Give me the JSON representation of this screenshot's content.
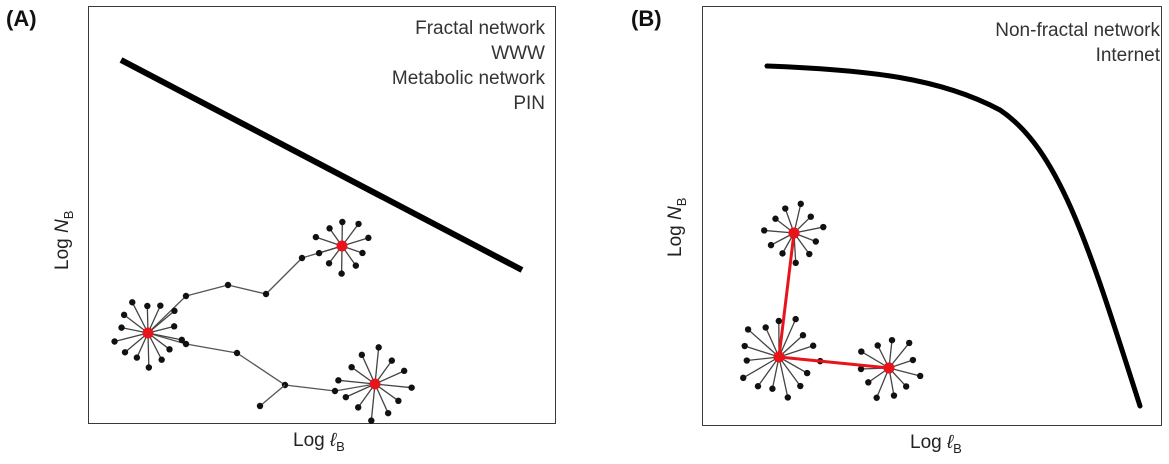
{
  "panel_a": {
    "tag": "(A)",
    "legend": [
      "Fractal network",
      "WWW",
      "Metabolic network",
      "PIN"
    ],
    "xlabel": {
      "prefix": "Log ",
      "symbol": "ℓ",
      "sub": "B"
    },
    "ylabel": {
      "prefix": "Log ",
      "symbol": "N",
      "sub": "B"
    }
  },
  "panel_b": {
    "tag": "(B)",
    "legend": [
      "Non-fractal network",
      "Internet"
    ],
    "xlabel": {
      "prefix": "Log ",
      "symbol": "ℓ",
      "sub": "B"
    },
    "ylabel": {
      "prefix": "Log ",
      "symbol": "N",
      "sub": "B"
    }
  },
  "colors": {
    "hub": "#e8141b",
    "node": "#111111",
    "link_b": "#e8141b",
    "curve": "#000000"
  }
}
